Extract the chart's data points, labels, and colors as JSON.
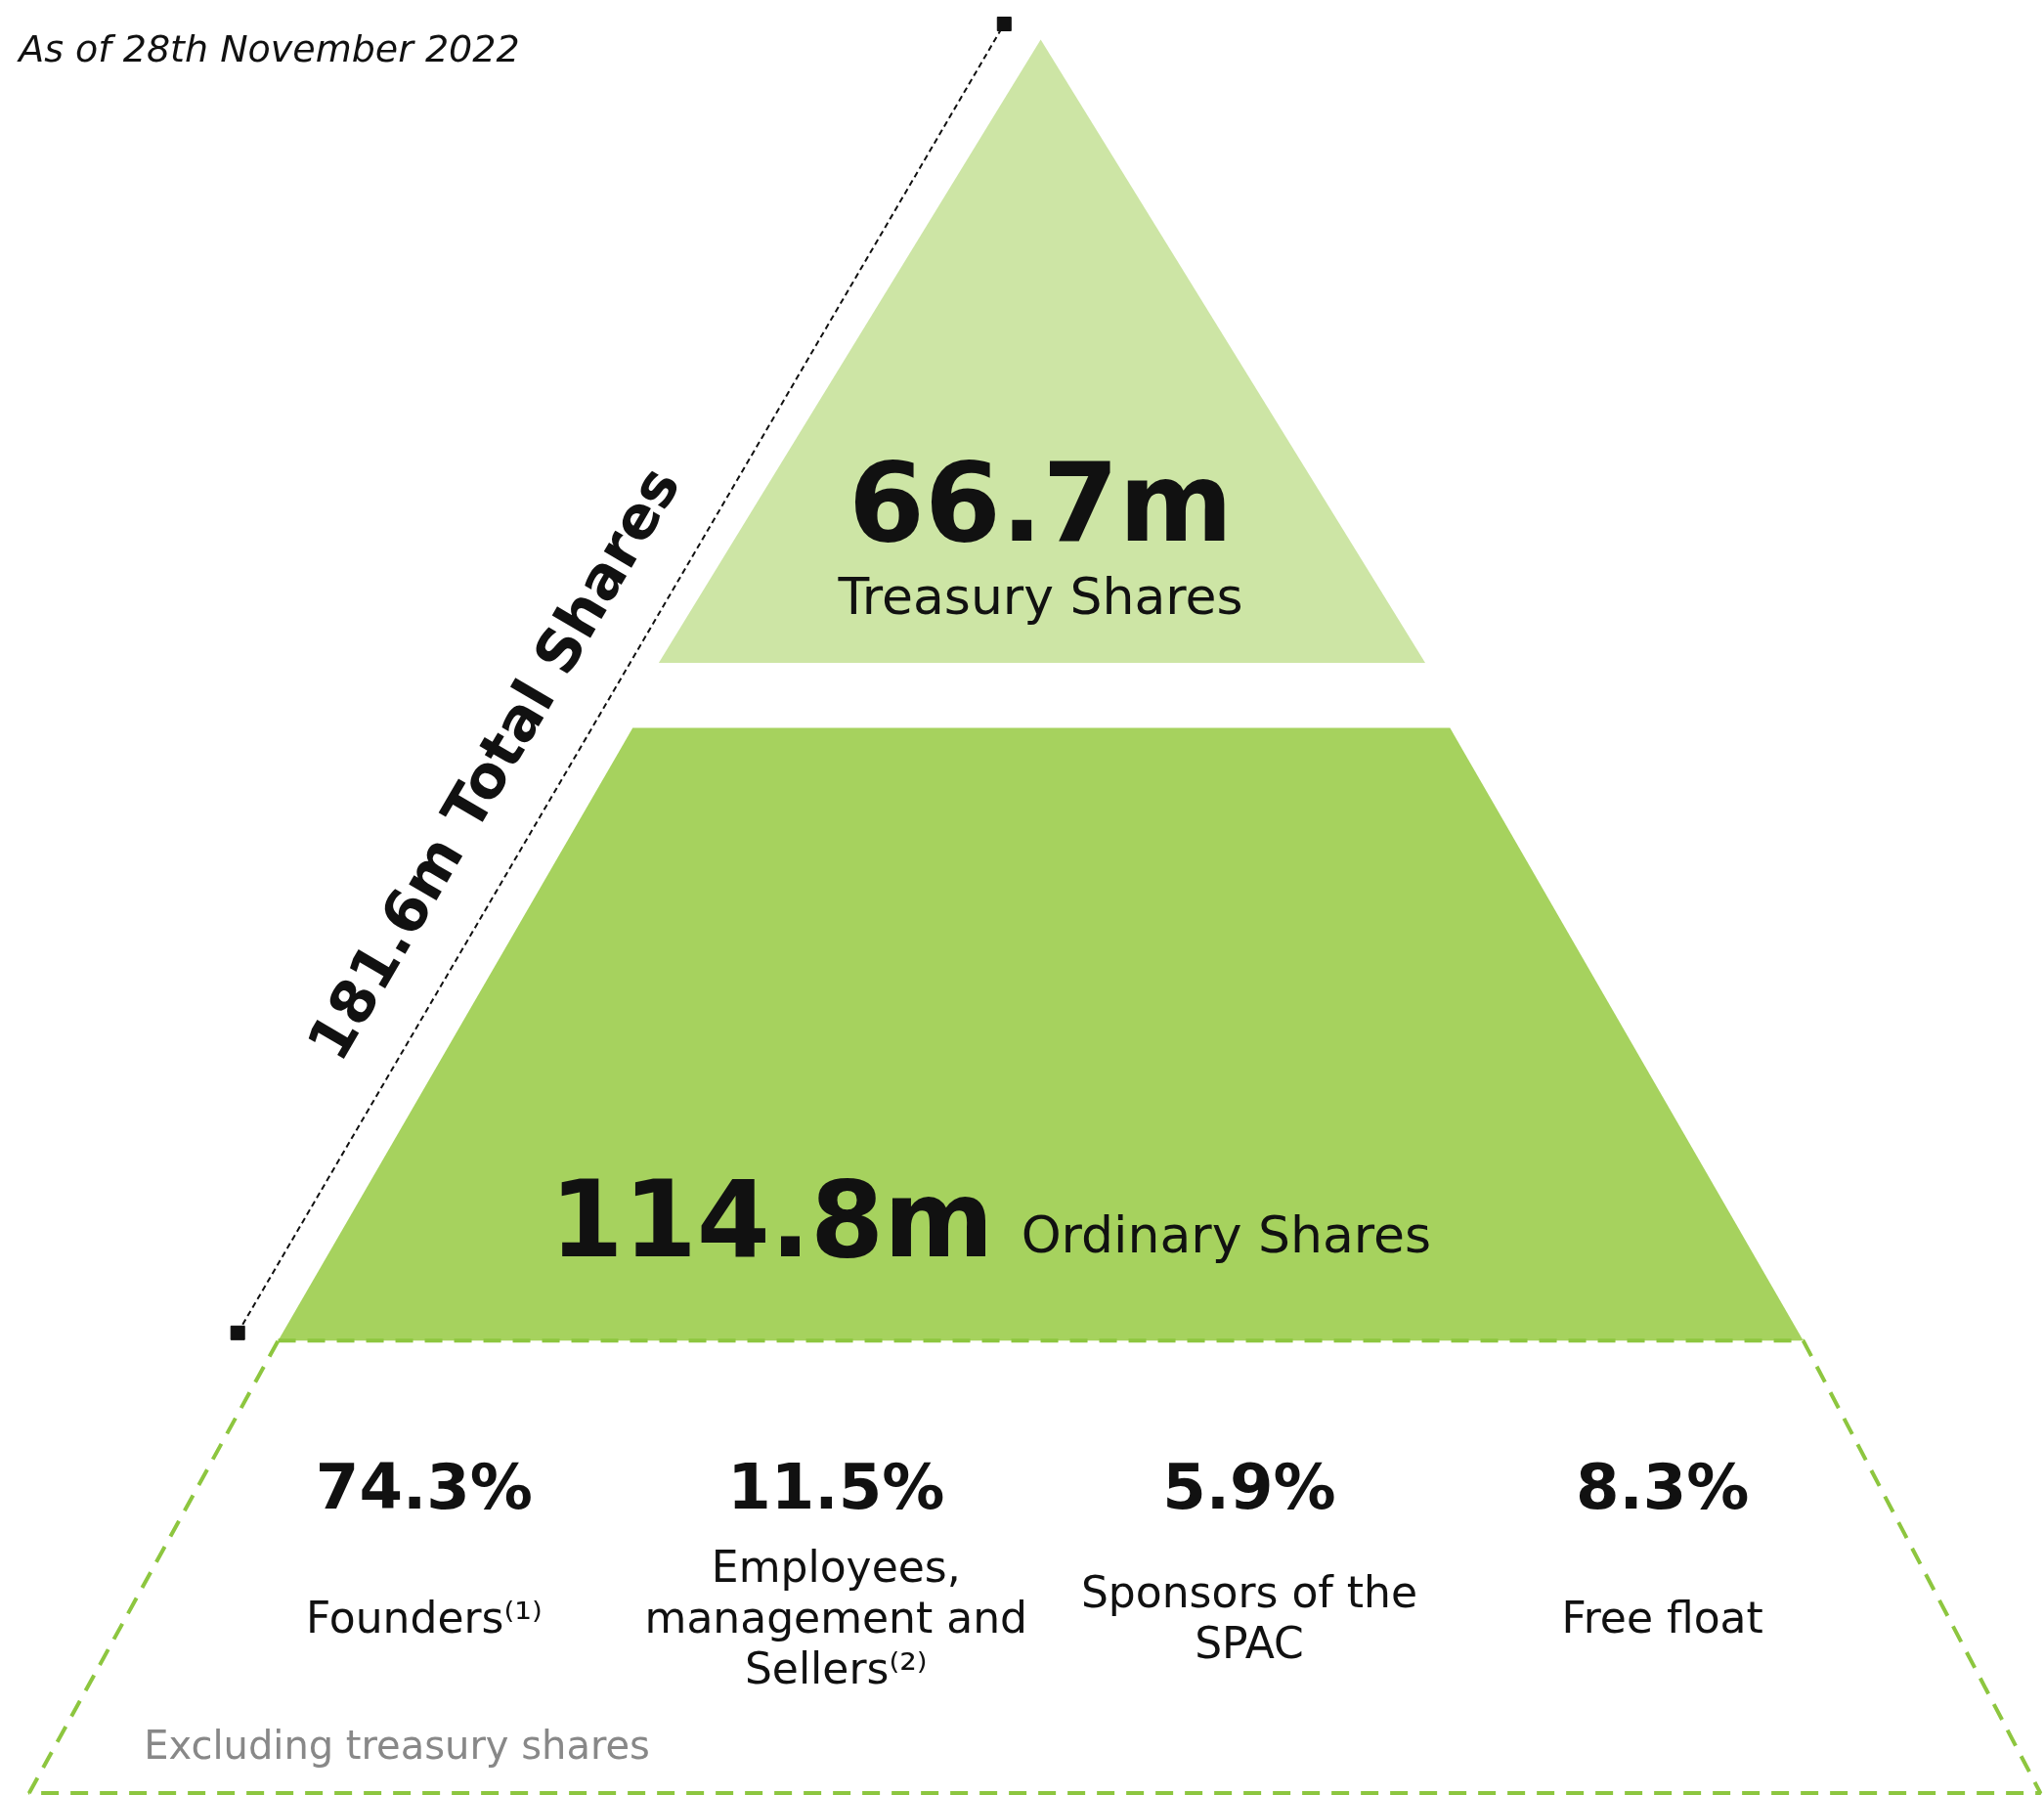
{
  "chart_data": [
    {
      "type": "other",
      "subtitle": "As of 28th November 2022",
      "categories": [
        "Treasury Shares",
        "Ordinary Shares"
      ],
      "values": [
        66.7,
        114.8
      ],
      "value_labels": [
        "66.7m",
        "114.8m"
      ],
      "colors": [
        "#cde5a5",
        "#a6d25e"
      ],
      "annotations": [
        "181.6m Total Shares"
      ]
    },
    {
      "type": "other",
      "categories": [
        "Founders⁽¹⁾",
        "Employees, management and Sellers⁽²⁾",
        "Sponsors of the SPAC",
        "Free float"
      ],
      "values": [
        74.3,
        11.5,
        5.9,
        8.3
      ],
      "value_labels": [
        "74.3%",
        "11.5%",
        "5.9%",
        "8.3%"
      ],
      "color": "#8dc63f",
      "annotations": [
        "Excluding treasury shares"
      ]
    }
  ]
}
